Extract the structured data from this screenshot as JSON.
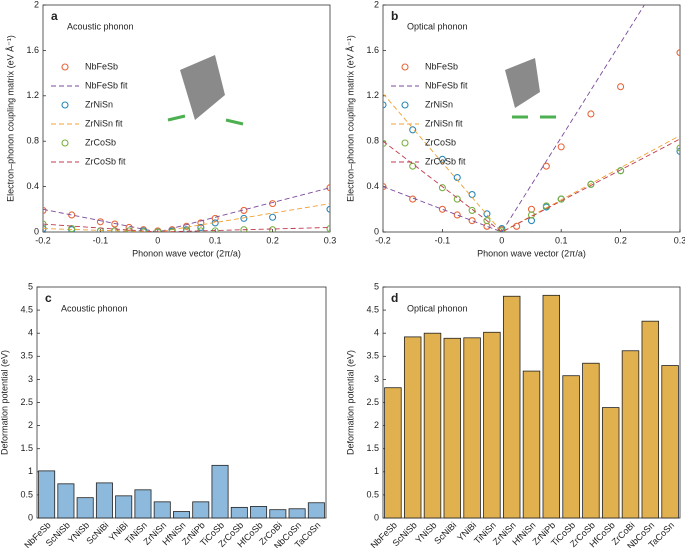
{
  "chart_data": [
    {
      "type": "scatter",
      "panel": "a",
      "annotation": "Acoustic phonon",
      "xlabel": "Phonon wave vector (2π/a)",
      "ylabel": "Electron–phonon coupling matrix (eV Å⁻¹)",
      "xlim": [
        -0.2,
        0.3
      ],
      "ylim": [
        0,
        2
      ],
      "xticks": [
        -0.2,
        -0.1,
        0,
        0.1,
        0.2,
        0.3
      ],
      "yticks": [
        0,
        0.4,
        0.8,
        1.2,
        1.6,
        2
      ],
      "series": [
        {
          "name": "NbFeSb",
          "type": "scatter",
          "color": "#e8673a",
          "x": [
            -0.2,
            -0.15,
            -0.1,
            -0.075,
            -0.05,
            -0.025,
            0,
            0.025,
            0.05,
            0.075,
            0.1,
            0.15,
            0.2,
            0.3
          ],
          "values": [
            0.19,
            0.15,
            0.09,
            0.07,
            0.04,
            0.02,
            0.01,
            0.02,
            0.05,
            0.08,
            0.12,
            0.19,
            0.25,
            0.39
          ]
        },
        {
          "name": "NbFeSb fit",
          "type": "line",
          "color": "#7a4a9c",
          "x": [
            -0.2,
            0,
            0.3
          ],
          "values": [
            0.2,
            0,
            0.39
          ]
        },
        {
          "name": "ZrNiSn",
          "type": "scatter",
          "color": "#2a87b8",
          "x": [
            -0.2,
            -0.15,
            -0.1,
            -0.075,
            -0.05,
            -0.025,
            0,
            0.025,
            0.05,
            0.075,
            0.1,
            0.15,
            0.2,
            0.3
          ],
          "values": [
            0.03,
            0.02,
            0.01,
            0.01,
            0.01,
            0.01,
            0,
            0.01,
            0.02,
            0.04,
            0.08,
            0.12,
            0.13,
            0.2
          ]
        },
        {
          "name": "ZrNiSn fit",
          "type": "line",
          "color": "#f0a030",
          "x": [
            -0.2,
            0,
            0.3
          ],
          "values": [
            0.03,
            0,
            0.25
          ]
        },
        {
          "name": "ZrCoSb",
          "type": "scatter",
          "color": "#7ab040",
          "x": [
            -0.2,
            -0.15,
            -0.1,
            -0.075,
            -0.05,
            -0.025,
            0,
            0.025,
            0.05,
            0.075,
            0.1,
            0.15,
            0.2,
            0.3
          ],
          "values": [
            0.07,
            0.03,
            0.01,
            0.01,
            0.01,
            0,
            0,
            0,
            0.01,
            0.01,
            0.01,
            0.02,
            0.02,
            0.03
          ]
        },
        {
          "name": "ZrCoSb fit",
          "type": "line",
          "color": "#c0394f",
          "x": [
            -0.2,
            0,
            0.3
          ],
          "values": [
            0.07,
            0,
            0.04
          ]
        }
      ]
    },
    {
      "type": "scatter",
      "panel": "b",
      "annotation": "Optical phonon",
      "xlabel": "Phonon wave vector (2π/a)",
      "ylabel": "Electron–phonon coupling matrix (eV Å⁻¹)",
      "xlim": [
        -0.2,
        0.3
      ],
      "ylim": [
        0,
        2
      ],
      "xticks": [
        -0.2,
        -0.1,
        0,
        0.1,
        0.2,
        0.3
      ],
      "yticks": [
        0,
        0.4,
        0.8,
        1.2,
        1.6,
        2
      ],
      "series": [
        {
          "name": "NbFeSb",
          "type": "scatter",
          "color": "#e8673a",
          "x": [
            -0.2,
            -0.15,
            -0.1,
            -0.075,
            -0.05,
            -0.025,
            0,
            0.025,
            0.05,
            0.075,
            0.1,
            0.15,
            0.2,
            0.3
          ],
          "values": [
            0.4,
            0.29,
            0.2,
            0.15,
            0.1,
            0.05,
            0.02,
            0.05,
            0.2,
            0.58,
            0.75,
            1.04,
            1.28,
            1.58
          ]
        },
        {
          "name": "NbFeSb fit",
          "type": "line",
          "color": "#7a4a9c",
          "x": [
            -0.2,
            0,
            0.24
          ],
          "values": [
            0.4,
            0,
            2
          ]
        },
        {
          "name": "ZrNiSn",
          "type": "scatter",
          "color": "#2a87b8",
          "x": [
            -0.2,
            -0.15,
            -0.1,
            -0.075,
            -0.05,
            -0.025,
            0,
            0.05,
            0.075,
            0.1,
            0.15,
            0.2,
            0.3
          ],
          "values": [
            1.12,
            0.9,
            0.64,
            0.48,
            0.33,
            0.16,
            0.03,
            0.1,
            0.22,
            0.29,
            0.42,
            0.54,
            0.71
          ]
        },
        {
          "name": "ZrNiSn fit",
          "type": "line",
          "color": "#f0a030",
          "x": [
            -0.2,
            0,
            0.3
          ],
          "values": [
            1.22,
            0,
            0.85
          ]
        },
        {
          "name": "ZrCoSb",
          "type": "scatter",
          "color": "#7ab040",
          "x": [
            -0.2,
            -0.15,
            -0.1,
            -0.075,
            -0.05,
            -0.025,
            0,
            0.05,
            0.075,
            0.1,
            0.15,
            0.2,
            0.3
          ],
          "values": [
            0.78,
            0.58,
            0.39,
            0.29,
            0.19,
            0.1,
            0.01,
            0.15,
            0.23,
            0.29,
            0.42,
            0.54,
            0.74
          ]
        },
        {
          "name": "ZrCoSb fit",
          "type": "line",
          "color": "#c0394f",
          "x": [
            -0.2,
            0,
            0.3
          ],
          "values": [
            0.8,
            0,
            0.82
          ]
        }
      ]
    },
    {
      "type": "bar",
      "panel": "c",
      "annotation": "Acoustic phonon",
      "ylabel": "Deformation potential (eV)",
      "color": "#8db9dc",
      "ylim": [
        0,
        5
      ],
      "yticks": [
        0,
        0.5,
        1,
        1.5,
        2,
        2.5,
        3,
        3.5,
        4,
        4.5,
        5
      ],
      "categories": [
        "NbFeSb",
        "ScNiSb",
        "YNiSb",
        "ScNiBi",
        "YNiBi",
        "TiNiSn",
        "ZrNiSn",
        "HfNiSn",
        "ZrNiPb",
        "TiCoSb",
        "ZrCoSb",
        "HfCoSb",
        "ZrCoBi",
        "NbCoSn",
        "TaCoSn"
      ],
      "values": [
        1.02,
        0.74,
        0.44,
        0.76,
        0.48,
        0.61,
        0.35,
        0.14,
        0.35,
        1.14,
        0.23,
        0.25,
        0.18,
        0.2,
        0.33
      ]
    },
    {
      "type": "bar",
      "panel": "d",
      "annotation": "Optical phonon",
      "ylabel": "Deformation potential (eV)",
      "color": "#e2b14f",
      "ylim": [
        0,
        5
      ],
      "yticks": [
        0,
        0.5,
        1,
        1.5,
        2,
        2.5,
        3,
        3.5,
        4,
        4.5,
        5
      ],
      "categories": [
        "NbFeSb",
        "ScNiSb",
        "YNiSb",
        "ScNiBi",
        "YNiBi",
        "TiNiSn",
        "ZrNiSn",
        "HfNiSn",
        "ZrNiPb",
        "TiCoSb",
        "ZrCoSb",
        "HfCoSb",
        "ZrCoBi",
        "NbCoSn",
        "TaCoSn"
      ],
      "values": [
        2.82,
        3.92,
        4.0,
        3.89,
        3.9,
        4.02,
        4.8,
        3.18,
        4.82,
        3.08,
        3.35,
        2.39,
        3.62,
        4.26,
        3.3
      ]
    }
  ]
}
